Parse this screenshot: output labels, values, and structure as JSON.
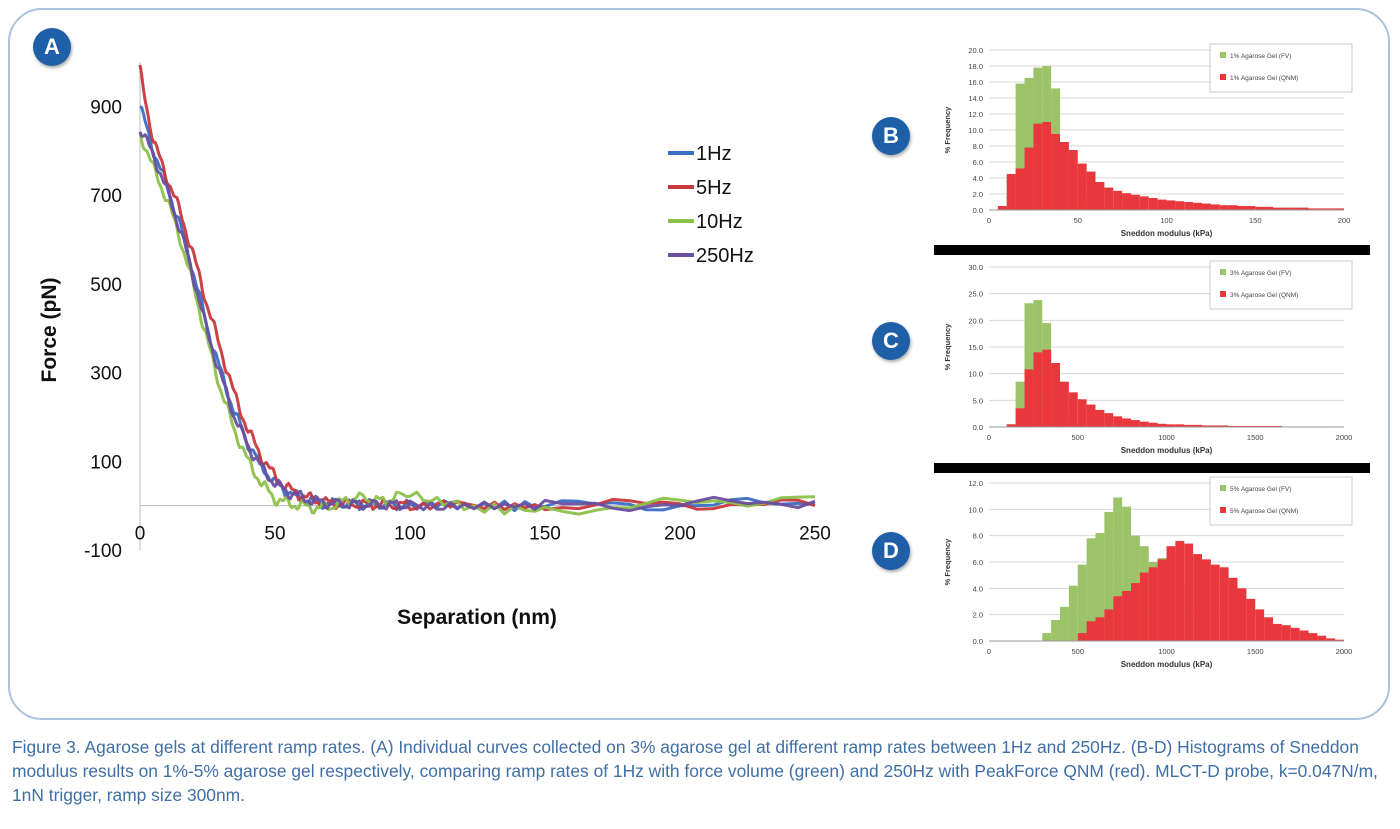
{
  "panels": {
    "A": "A",
    "B": "B",
    "C": "C",
    "D": "D"
  },
  "caption": "Figure 3. Agarose gels at different ramp rates. (A) Individual curves collected on 3% agarose gel at different ramp rates between 1Hz and 250Hz. (B-D) Histograms of Sneddon modulus results on 1%-5% agarose gel respectively, comparing ramp rates of 1Hz with force volume (green) and 250Hz with PeakForce QNM (red). MLCT-D probe, k=0.047N/m, 1nN trigger, ramp size 300nm.",
  "colors": {
    "frame_border": "#a9c4de",
    "badge": "#1f5fa8",
    "caption": "#3f6fa6",
    "fv_green": "#9bc468",
    "qnm_red": "#e8383d"
  },
  "chart_data": [
    {
      "id": "A",
      "type": "line",
      "xlabel": "Separation (nm)",
      "ylabel": "Force (pN)",
      "xlim": [
        0,
        250
      ],
      "ylim": [
        -100,
        1000
      ],
      "xticks": [
        "0",
        "50",
        "100",
        "150",
        "200",
        "250"
      ],
      "yticks": [
        "900",
        "700",
        "500",
        "300",
        "100",
        "-100"
      ],
      "legend_position": "center-right",
      "series": [
        {
          "name": "1Hz",
          "color": "#3a6fc4",
          "x": [
            0,
            5,
            10,
            15,
            20,
            25,
            30,
            35,
            40,
            45,
            50,
            55,
            60,
            65,
            70,
            80,
            90,
            100,
            120,
            150,
            200,
            250
          ],
          "y": [
            900,
            800,
            720,
            630,
            520,
            400,
            300,
            210,
            140,
            90,
            50,
            30,
            15,
            8,
            5,
            3,
            2,
            1,
            0,
            0,
            2,
            5
          ]
        },
        {
          "name": "5Hz",
          "color": "#c8383d",
          "x": [
            0,
            5,
            10,
            15,
            20,
            25,
            30,
            35,
            40,
            45,
            50,
            55,
            60,
            65,
            70,
            80,
            90,
            100,
            120,
            150,
            200,
            250
          ],
          "y": [
            980,
            820,
            740,
            660,
            560,
            450,
            350,
            250,
            170,
            110,
            65,
            38,
            22,
            12,
            6,
            4,
            2,
            1,
            0,
            -2,
            5,
            0
          ]
        },
        {
          "name": "10Hz",
          "color": "#8cc04a",
          "x": [
            0,
            5,
            10,
            15,
            20,
            25,
            30,
            35,
            40,
            45,
            50,
            55,
            60,
            65,
            70,
            80,
            90,
            100,
            120,
            150,
            200,
            250
          ],
          "y": [
            840,
            760,
            690,
            600,
            490,
            370,
            260,
            170,
            100,
            50,
            15,
            5,
            0,
            -5,
            -3,
            20,
            10,
            30,
            -5,
            -10,
            5,
            20
          ]
        },
        {
          "name": "250Hz",
          "color": "#6a4fa0",
          "x": [
            0,
            5,
            10,
            15,
            20,
            25,
            30,
            35,
            40,
            45,
            50,
            55,
            60,
            65,
            70,
            80,
            90,
            100,
            120,
            150,
            200,
            250
          ],
          "y": [
            850,
            790,
            710,
            620,
            510,
            390,
            290,
            200,
            135,
            85,
            50,
            30,
            18,
            10,
            6,
            3,
            2,
            1,
            0,
            0,
            3,
            10
          ]
        }
      ]
    },
    {
      "id": "B",
      "type": "bar",
      "xlabel": "Sneddon modulus (kPa)",
      "ylabel": "% Frequency",
      "xlim": [
        0,
        200
      ],
      "ylim": [
        0,
        20
      ],
      "xticks": [
        "0",
        "50",
        "100",
        "150",
        "200"
      ],
      "yticks": [
        "0.0",
        "2.0",
        "4.0",
        "6.0",
        "8.0",
        "10.0",
        "12.0",
        "14.0",
        "16.0",
        "18.0",
        "20.0"
      ],
      "bin_width": 5,
      "legend_position": "top-right",
      "series": [
        {
          "name": "1% Agarose Gel (FV)",
          "color": "#9bc468",
          "bin_starts": [
            5,
            10,
            15,
            20,
            25,
            30,
            35,
            40,
            45,
            50,
            55,
            60,
            65,
            70
          ],
          "values": [
            0.5,
            4.5,
            15.8,
            16.5,
            17.8,
            18.0,
            15.2,
            7.8,
            5.2,
            4.5,
            1.5,
            0.6,
            0.3,
            0.2
          ]
        },
        {
          "name": "1% Agarose Gel (QNM)",
          "color": "#e8383d",
          "bin_starts": [
            5,
            10,
            15,
            20,
            25,
            30,
            35,
            40,
            45,
            50,
            55,
            60,
            65,
            70,
            75,
            80,
            85,
            90,
            95,
            100,
            105,
            110,
            115,
            120,
            125,
            130,
            135,
            140,
            145,
            150,
            155,
            160,
            165,
            170,
            175,
            180,
            185,
            190,
            195
          ],
          "values": [
            0.5,
            4.5,
            5.2,
            7.8,
            10.8,
            11.0,
            9.5,
            8.5,
            7.5,
            5.8,
            4.8,
            3.5,
            2.8,
            2.4,
            2.1,
            1.9,
            1.7,
            1.5,
            1.3,
            1.2,
            1.1,
            1.0,
            0.9,
            0.8,
            0.7,
            0.6,
            0.6,
            0.5,
            0.5,
            0.4,
            0.4,
            0.3,
            0.3,
            0.3,
            0.3,
            0.2,
            0.2,
            0.2,
            0.2
          ]
        }
      ]
    },
    {
      "id": "C",
      "type": "bar",
      "xlabel": "Sneddon modulus (kPa)",
      "ylabel": "% Frequency",
      "xlim": [
        0,
        2000
      ],
      "ylim": [
        0,
        30
      ],
      "xticks": [
        "0",
        "500",
        "1000",
        "1500",
        "2000"
      ],
      "yticks": [
        "0.0",
        "5.0",
        "10.0",
        "15.0",
        "20.0",
        "25.0",
        "30.0"
      ],
      "bin_width": 50,
      "legend_position": "top-right",
      "series": [
        {
          "name": "3% Agarose Gel (FV)",
          "color": "#9bc468",
          "bin_starts": [
            100,
            150,
            200,
            250,
            300,
            350,
            400,
            450
          ],
          "values": [
            0.5,
            8.5,
            23.2,
            23.8,
            19.5,
            11.5,
            3.0,
            0.5
          ]
        },
        {
          "name": "3% Agarose Gel (QNM)",
          "color": "#e8383d",
          "bin_starts": [
            100,
            150,
            200,
            250,
            300,
            350,
            400,
            450,
            500,
            550,
            600,
            650,
            700,
            750,
            800,
            850,
            900,
            950,
            1000,
            1050,
            1100,
            1150,
            1200,
            1250,
            1300,
            1350,
            1400,
            1450,
            1500,
            1550,
            1600,
            1650,
            1700,
            1750,
            1800,
            1850
          ],
          "values": [
            0.5,
            3.5,
            10.8,
            14.0,
            14.5,
            12.0,
            8.5,
            6.5,
            5.2,
            4.2,
            3.2,
            2.6,
            2.0,
            1.6,
            1.3,
            1.0,
            0.8,
            0.6,
            0.5,
            0.5,
            0.4,
            0.4,
            0.3,
            0.3,
            0.3,
            0.2,
            0.2,
            0.2,
            0.2,
            0.2,
            0.2,
            0.1,
            0.1,
            0.1,
            0.1,
            0.1
          ]
        }
      ]
    },
    {
      "id": "D",
      "type": "bar",
      "xlabel": "Sneddon modulus (kPa)",
      "ylabel": "% Frequency",
      "xlim": [
        0,
        2000
      ],
      "ylim": [
        0,
        12
      ],
      "xticks": [
        "0",
        "500",
        "1000",
        "1500",
        "2000"
      ],
      "yticks": [
        "0.0",
        "2.0",
        "4.0",
        "6.0",
        "8.0",
        "10.0",
        "12.0"
      ],
      "bin_width": 50,
      "legend_position": "top-right",
      "series": [
        {
          "name": "5% Agarose Gel (FV)",
          "color": "#9bc468",
          "bin_starts": [
            300,
            350,
            400,
            450,
            500,
            550,
            600,
            650,
            700,
            750,
            800,
            850,
            900,
            950,
            1000,
            1050,
            1100
          ],
          "values": [
            0.6,
            1.6,
            2.6,
            4.2,
            5.8,
            7.8,
            8.2,
            9.8,
            10.9,
            10.2,
            8.0,
            7.2,
            6.0,
            6.3,
            6.6,
            4.5,
            2.5
          ]
        },
        {
          "name": "5% Agarose Gel (QNM)",
          "color": "#e8383d",
          "bin_starts": [
            500,
            550,
            600,
            650,
            700,
            750,
            800,
            850,
            900,
            950,
            1000,
            1050,
            1100,
            1150,
            1200,
            1250,
            1300,
            1350,
            1400,
            1450,
            1500,
            1550,
            1600,
            1650,
            1700,
            1750,
            1800,
            1850,
            1900,
            1950
          ],
          "values": [
            0.6,
            1.5,
            1.8,
            2.4,
            3.4,
            3.8,
            4.4,
            5.2,
            5.6,
            6.2,
            7.2,
            7.6,
            7.4,
            6.6,
            6.2,
            5.8,
            5.6,
            4.8,
            4.0,
            3.2,
            2.4,
            1.8,
            1.3,
            1.2,
            1.0,
            0.8,
            0.6,
            0.4,
            0.2,
            0.1
          ]
        }
      ]
    }
  ]
}
